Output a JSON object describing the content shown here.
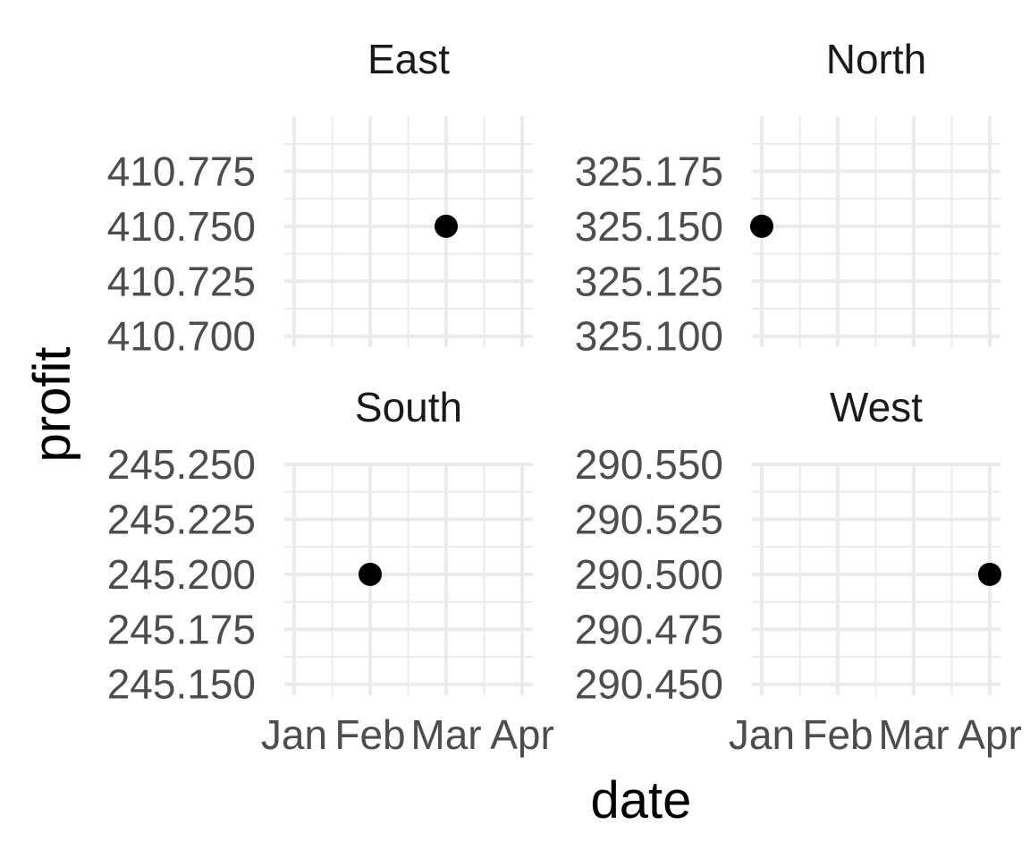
{
  "chart_data": {
    "type": "scatter",
    "facet_layout": "2x2",
    "xlabel": "date",
    "ylabel": "profit",
    "x_ticks": [
      "Jan",
      "Feb",
      "Mar",
      "Apr"
    ],
    "colors": {
      "point": "#000000",
      "grid": "#ebebeb",
      "tick_text": "#4d4d4d",
      "strip_text": "#1a1a1a"
    },
    "panels": [
      {
        "name": "East",
        "ylim": [
          410.695,
          410.8
        ],
        "y_ticks": [
          "410.700",
          "410.725",
          "410.750",
          "410.775"
        ],
        "y_tick_values": [
          410.7,
          410.725,
          410.75,
          410.775
        ],
        "points": [
          {
            "x": "Mar",
            "y": 410.75
          }
        ]
      },
      {
        "name": "North",
        "ylim": [
          325.095,
          325.2
        ],
        "y_ticks": [
          "325.100",
          "325.125",
          "325.150",
          "325.175"
        ],
        "y_tick_values": [
          325.1,
          325.125,
          325.15,
          325.175
        ],
        "points": [
          {
            "x": "Jan",
            "y": 325.15
          }
        ]
      },
      {
        "name": "South",
        "ylim": [
          245.145,
          245.25
        ],
        "y_ticks": [
          "245.150",
          "245.175",
          "245.200",
          "245.225",
          "245.250"
        ],
        "y_tick_values": [
          245.15,
          245.175,
          245.2,
          245.225,
          245.25
        ],
        "points": [
          {
            "x": "Feb",
            "y": 245.2
          }
        ]
      },
      {
        "name": "West",
        "ylim": [
          290.445,
          290.55
        ],
        "y_ticks": [
          "290.450",
          "290.475",
          "290.500",
          "290.525",
          "290.550"
        ],
        "y_tick_values": [
          290.45,
          290.475,
          290.5,
          290.525,
          290.55
        ],
        "points": [
          {
            "x": "Apr",
            "y": 290.5
          }
        ]
      }
    ]
  }
}
